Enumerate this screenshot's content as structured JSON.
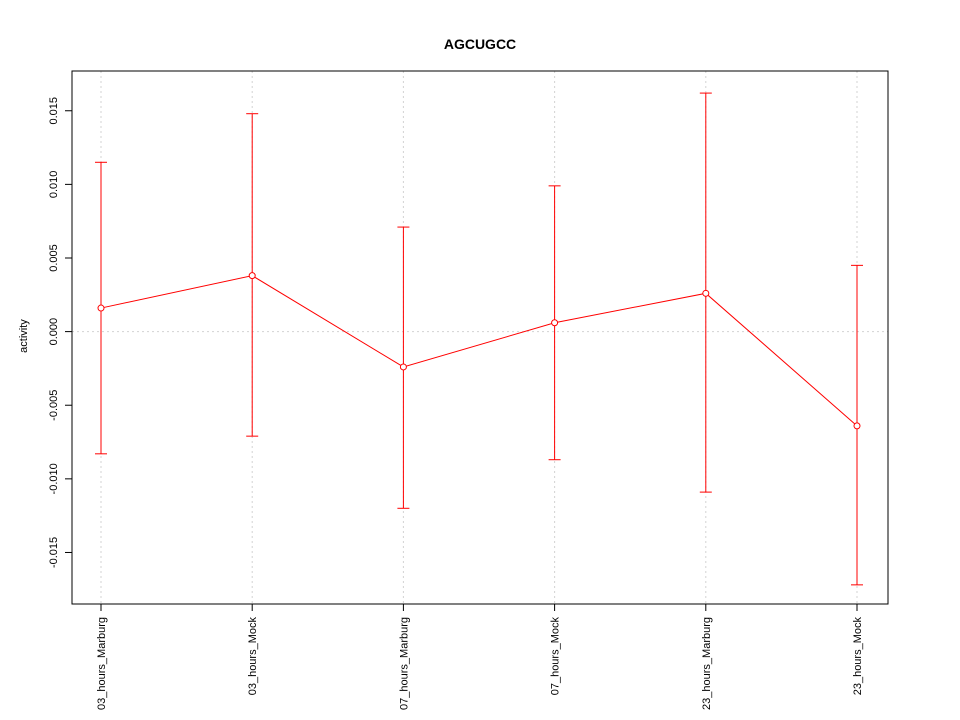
{
  "chart_data": {
    "type": "line",
    "title": "AGCUGCC",
    "xlabel": "",
    "ylabel": "activity",
    "categories": [
      "03_hours_Marburg",
      "03_hours_Mock",
      "07_hours_Marburg",
      "07_hours_Mock",
      "23_hours_Marburg",
      "23_hours_Mock"
    ],
    "series": [
      {
        "values": [
          0.0016,
          0.0038,
          -0.0024,
          0.0006,
          0.0026,
          -0.0064
        ],
        "lower": [
          -0.0083,
          -0.0071,
          -0.012,
          -0.0087,
          -0.0109,
          -0.0172
        ],
        "upper": [
          0.0115,
          0.0148,
          0.0071,
          0.0099,
          0.0162,
          0.0045
        ]
      }
    ],
    "yticks": [
      "-0.015",
      "-0.010",
      "-0.005",
      "0.000",
      "0.005",
      "0.010",
      "0.015"
    ],
    "ylim": [
      -0.0185,
      0.0177
    ],
    "grid": true,
    "colors": {
      "series": "#ff0000",
      "grid": "#d3d3d3",
      "axis": "#000000"
    }
  }
}
